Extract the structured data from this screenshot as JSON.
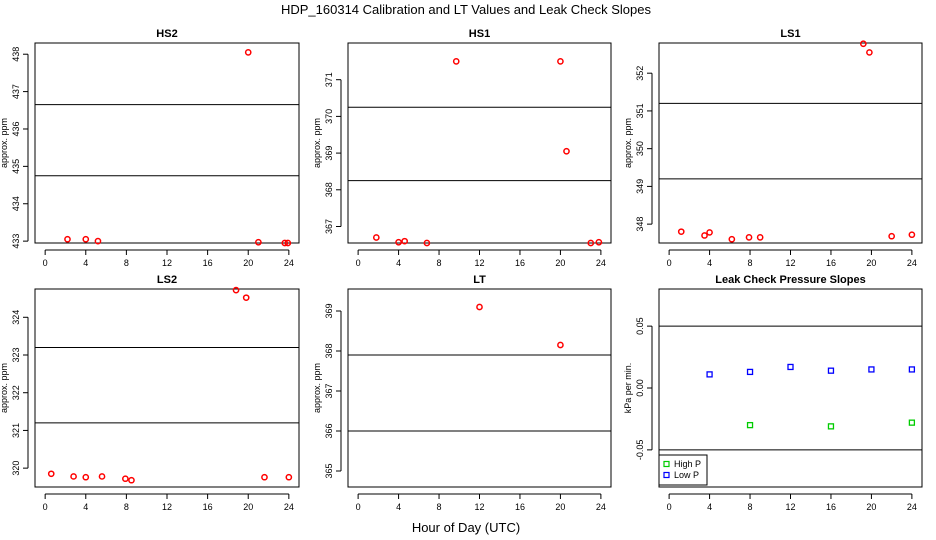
{
  "figure": {
    "title": "HDP_160314  Calibration and LT Values and Leak Check Slopes",
    "xlabel": "Hour of Day (UTC)"
  },
  "colors": {
    "cal": "#ff0000",
    "high": "#00cc00",
    "low": "#0000ff",
    "ref": "#000000"
  },
  "chart_data": [
    {
      "type": "scatter",
      "title": "HS2",
      "ylabel": "approx. ppm",
      "xlim": [
        -1,
        25
      ],
      "xticks": [
        0,
        4,
        8,
        12,
        16,
        20,
        24
      ],
      "ylim": [
        432.95,
        438.3
      ],
      "yticks": [
        433,
        434,
        435,
        436,
        437,
        438
      ],
      "hlines": [
        434.75,
        436.65
      ],
      "series": [
        {
          "color": "#ff0000",
          "marker": "circle",
          "x": [
            2.2,
            4.0,
            5.2,
            20.0,
            21.0,
            23.6,
            23.9
          ],
          "y": [
            433.05,
            433.05,
            433.0,
            438.05,
            432.97,
            432.95,
            432.95
          ]
        }
      ]
    },
    {
      "type": "scatter",
      "title": "HS1",
      "ylabel": "approx. ppm",
      "xlim": [
        -1,
        25
      ],
      "xticks": [
        0,
        4,
        8,
        12,
        16,
        20,
        24
      ],
      "ylim": [
        366.55,
        372.0
      ],
      "yticks": [
        367,
        368,
        369,
        370,
        371
      ],
      "hlines": [
        368.25,
        370.25
      ],
      "series": [
        {
          "color": "#ff0000",
          "marker": "circle",
          "x": [
            1.8,
            4.0,
            4.6,
            6.8,
            9.7,
            20.0,
            20.6,
            23.0,
            23.8
          ],
          "y": [
            366.7,
            366.57,
            366.6,
            366.55,
            371.5,
            371.5,
            369.05,
            366.55,
            366.57
          ]
        }
      ]
    },
    {
      "type": "scatter",
      "title": "LS1",
      "ylabel": "approx. ppm",
      "xlim": [
        -1,
        25
      ],
      "xticks": [
        0,
        4,
        8,
        12,
        16,
        20,
        24
      ],
      "ylim": [
        347.5,
        352.8
      ],
      "yticks": [
        348,
        349,
        350,
        351,
        352
      ],
      "hlines": [
        349.2,
        351.2
      ],
      "series": [
        {
          "color": "#ff0000",
          "marker": "circle",
          "x": [
            1.2,
            3.5,
            4.0,
            6.2,
            7.9,
            9.0,
            19.2,
            19.8,
            22.0,
            24.0
          ],
          "y": [
            347.8,
            347.7,
            347.78,
            347.6,
            347.65,
            347.65,
            352.78,
            352.55,
            347.68,
            347.72
          ]
        }
      ]
    },
    {
      "type": "scatter",
      "title": "LS2",
      "ylabel": "approx. ppm",
      "xlim": [
        -1,
        25
      ],
      "xticks": [
        0,
        4,
        8,
        12,
        16,
        20,
        24
      ],
      "ylim": [
        319.5,
        324.75
      ],
      "yticks": [
        320,
        321,
        322,
        323,
        324
      ],
      "hlines": [
        321.2,
        323.2
      ],
      "series": [
        {
          "color": "#ff0000",
          "marker": "circle",
          "x": [
            0.6,
            2.8,
            4.0,
            5.6,
            7.9,
            8.5,
            18.8,
            19.8,
            21.6,
            24.0
          ],
          "y": [
            319.85,
            319.78,
            319.76,
            319.78,
            319.72,
            319.68,
            324.72,
            324.52,
            319.76,
            319.76
          ]
        }
      ]
    },
    {
      "type": "scatter",
      "title": "LT",
      "ylabel": "approx. ppm",
      "xlim": [
        -1,
        25
      ],
      "xticks": [
        0,
        4,
        8,
        12,
        16,
        20,
        24
      ],
      "ylim": [
        364.6,
        369.55
      ],
      "yticks": [
        365,
        366,
        367,
        368,
        369
      ],
      "hlines": [
        366.0,
        367.9
      ],
      "series": [
        {
          "color": "#ff0000",
          "marker": "circle",
          "x": [
            12.0,
            20.0
          ],
          "y": [
            369.1,
            368.15
          ]
        }
      ]
    },
    {
      "type": "scatter",
      "title": "Leak Check Pressure Slopes",
      "ylabel": "kPa per min.",
      "xlim": [
        -1,
        25
      ],
      "xticks": [
        0,
        4,
        8,
        12,
        16,
        20,
        24
      ],
      "ylim": [
        -0.08,
        0.08
      ],
      "yticks": [
        -0.05,
        0.0,
        0.05
      ],
      "ytick_labels": [
        "-0.05",
        "0.00",
        "0.05"
      ],
      "hlines": [
        -0.05,
        0.05
      ],
      "legend": "bottom-left",
      "series": [
        {
          "name": "High P",
          "color": "#00cc00",
          "marker": "square",
          "x": [
            8,
            16,
            24
          ],
          "y": [
            -0.03,
            -0.031,
            -0.028
          ]
        },
        {
          "name": "Low P",
          "color": "#0000ff",
          "marker": "square",
          "x": [
            4,
            8,
            12,
            16,
            20,
            24
          ],
          "y": [
            0.011,
            0.013,
            0.017,
            0.014,
            0.015,
            0.015
          ]
        }
      ]
    }
  ]
}
